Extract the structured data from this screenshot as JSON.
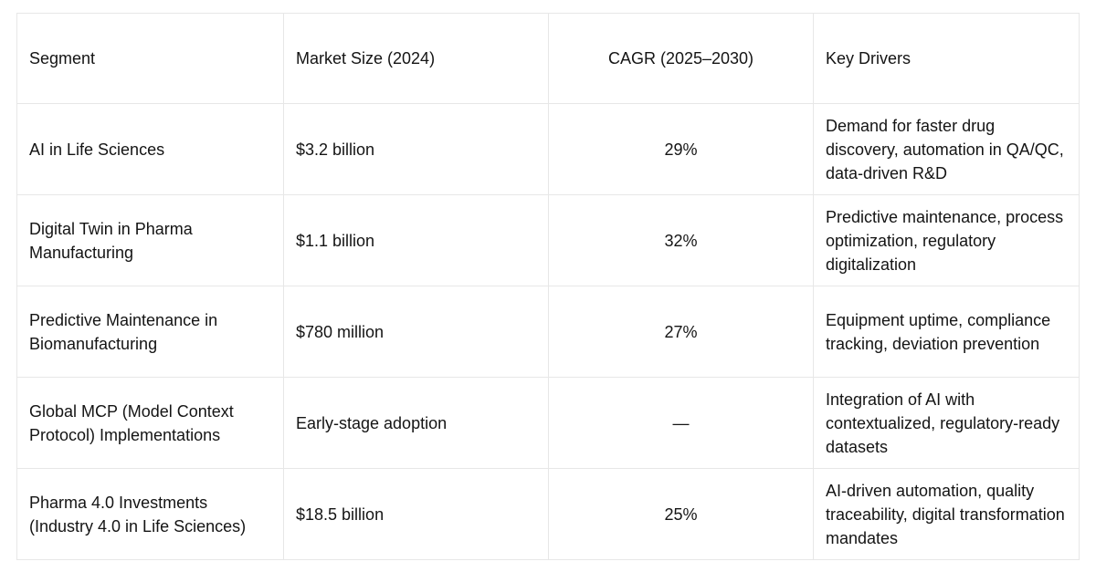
{
  "colors": {
    "border": "#e7e7e7",
    "text": "#141414",
    "background": "#ffffff"
  },
  "chart_data": {
    "type": "table",
    "title": "",
    "columns": [
      "Segment",
      "Market Size (2024)",
      "CAGR (2025–2030)",
      "Key Drivers"
    ],
    "column_alignments": [
      "left",
      "left",
      "center",
      "left"
    ],
    "rows": [
      [
        "AI in Life Sciences",
        "$3.2 billion",
        "29%",
        "Demand for faster drug discovery, automation in QA/QC, data-driven R&D"
      ],
      [
        "Digital Twin in Pharma Manufacturing",
        "$1.1 billion",
        "32%",
        "Predictive maintenance, process optimization, regulatory digitalization"
      ],
      [
        "Predictive Maintenance in Biomanufacturing",
        "$780 million",
        "27%",
        "Equipment uptime, compliance tracking, deviation prevention"
      ],
      [
        "Global MCP (Model Context Protocol) Implementations",
        "Early-stage adoption",
        "—",
        "Integration of AI with contextualized, regulatory-ready datasets"
      ],
      [
        "Pharma 4.0 Investments (Industry 4.0 in Life Sciences)",
        "$18.5 billion",
        "25%",
        "AI-driven automation, quality traceability, digital transformation mandates"
      ]
    ]
  }
}
